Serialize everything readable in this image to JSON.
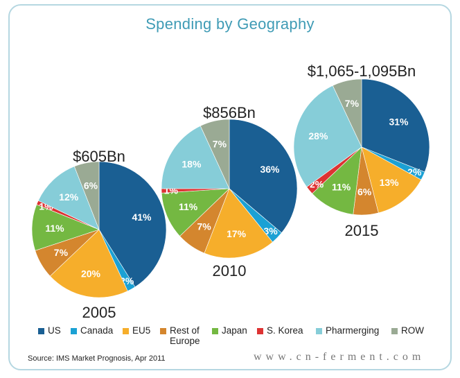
{
  "chart_data": {
    "type": "pie",
    "title": "Spending by Geography",
    "source": "Source: IMS Market Prognosis, Apr 2011",
    "legend": {
      "placement": "bottom",
      "entries": [
        "US",
        "Canada",
        "EU5",
        "Rest of Europe",
        "Japan",
        "S. Korea",
        "Pharmerging",
        "ROW"
      ]
    },
    "colors": {
      "US": "#1a5f93",
      "Canada": "#1ba1d4",
      "EU5": "#f6ae2b",
      "Rest of Europe": "#d4862e",
      "Japan": "#74b842",
      "S. Korea": "#dd3333",
      "Pharmerging": "#86cdd8",
      "ROW": "#9aaa94"
    },
    "pies": [
      {
        "year": "2005",
        "total": "$605Bn",
        "slices": [
          {
            "name": "US",
            "value": 41,
            "label": "41%"
          },
          {
            "name": "Canada",
            "value": 2,
            "label": "2%"
          },
          {
            "name": "EU5",
            "value": 20,
            "label": "20%"
          },
          {
            "name": "Rest of Europe",
            "value": 7,
            "label": "7%"
          },
          {
            "name": "Japan",
            "value": 11,
            "label": "11%"
          },
          {
            "name": "S. Korea",
            "value": 1,
            "label": "1%"
          },
          {
            "name": "Pharmerging",
            "value": 12,
            "label": "12%"
          },
          {
            "name": "ROW",
            "value": 6,
            "label": "6%"
          }
        ]
      },
      {
        "year": "2010",
        "total": "$856Bn",
        "slices": [
          {
            "name": "US",
            "value": 36,
            "label": "36%"
          },
          {
            "name": "Canada",
            "value": 3,
            "label": "3%"
          },
          {
            "name": "EU5",
            "value": 17,
            "label": "17%"
          },
          {
            "name": "Rest of Europe",
            "value": 7,
            "label": "7%"
          },
          {
            "name": "Japan",
            "value": 11,
            "label": "11%"
          },
          {
            "name": "S. Korea",
            "value": 1,
            "label": "1%"
          },
          {
            "name": "Pharmerging",
            "value": 18,
            "label": "18%"
          },
          {
            "name": "ROW",
            "value": 7,
            "label": "7%"
          }
        ]
      },
      {
        "year": "2015",
        "total": "$1,065-1,095Bn",
        "slices": [
          {
            "name": "US",
            "value": 31,
            "label": "31%"
          },
          {
            "name": "Canada",
            "value": 2,
            "label": "2%"
          },
          {
            "name": "EU5",
            "value": 13,
            "label": "13%"
          },
          {
            "name": "Rest of Europe",
            "value": 6,
            "label": "6%"
          },
          {
            "name": "Japan",
            "value": 11,
            "label": "11%"
          },
          {
            "name": "S. Korea",
            "value": 2,
            "label": "2%"
          },
          {
            "name": "Pharmerging",
            "value": 28,
            "label": "28%"
          },
          {
            "name": "ROW",
            "value": 7,
            "label": "7%"
          }
        ]
      }
    ]
  },
  "watermark": "www.cn-ferment.com"
}
